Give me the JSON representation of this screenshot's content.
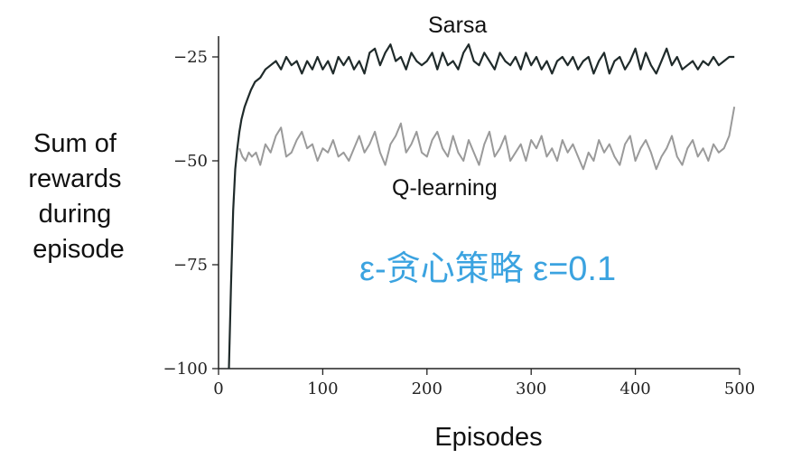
{
  "chart_data": {
    "type": "line",
    "title": "",
    "xlabel": "Episodes",
    "ylabel": [
      "Sum of",
      "rewards",
      "during",
      "episode"
    ],
    "xlim": [
      0,
      500
    ],
    "ylim": [
      -100,
      -20
    ],
    "xticks": [
      0,
      100,
      200,
      300,
      400,
      500
    ],
    "xtick_labels": [
      "0",
      "100",
      "200",
      "300",
      "400",
      "500"
    ],
    "yticks": [
      -25,
      -50,
      -75,
      -100
    ],
    "ytick_labels": [
      "−25",
      "−50",
      "−75",
      "−100"
    ],
    "grid": false,
    "legend": "none",
    "annotation": "ε-贪心策略 ε=0.1",
    "annotation_color": "#3ba3e0",
    "series": [
      {
        "name": "Sarsa",
        "color": "#1f2a2a",
        "x": [
          10,
          12,
          14,
          16,
          18,
          20,
          22,
          25,
          28,
          31,
          35,
          40,
          45,
          50,
          55,
          60,
          65,
          70,
          75,
          80,
          85,
          90,
          95,
          100,
          105,
          110,
          115,
          120,
          125,
          130,
          135,
          140,
          145,
          150,
          155,
          160,
          165,
          170,
          175,
          180,
          185,
          190,
          195,
          200,
          205,
          210,
          215,
          220,
          225,
          230,
          235,
          240,
          245,
          250,
          255,
          260,
          265,
          270,
          275,
          280,
          285,
          290,
          295,
          300,
          305,
          310,
          315,
          320,
          325,
          330,
          335,
          340,
          345,
          350,
          355,
          360,
          365,
          370,
          375,
          380,
          385,
          390,
          395,
          400,
          405,
          410,
          415,
          420,
          425,
          430,
          435,
          440,
          445,
          450,
          455,
          460,
          465,
          470,
          475,
          480,
          485,
          490,
          495
        ],
        "y": [
          -100,
          -80,
          -62,
          -52,
          -47,
          -43,
          -40,
          -37,
          -35,
          -33,
          -31,
          -30,
          -28,
          -27,
          -26,
          -28,
          -25,
          -27,
          -26,
          -29,
          -26,
          -28,
          -25,
          -28,
          -26,
          -29,
          -25,
          -27,
          -25,
          -28,
          -26,
          -29,
          -24,
          -23,
          -27,
          -24,
          -22,
          -26,
          -25,
          -28,
          -24,
          -26,
          -27,
          -26,
          -24,
          -28,
          -24,
          -27,
          -26,
          -28,
          -24,
          -22,
          -26,
          -27,
          -24,
          -26,
          -28,
          -24,
          -26,
          -27,
          -25,
          -28,
          -24,
          -27,
          -25,
          -28,
          -26,
          -29,
          -26,
          -25,
          -27,
          -25,
          -28,
          -26,
          -25,
          -29,
          -26,
          -24,
          -29,
          -26,
          -25,
          -28,
          -26,
          -23,
          -28,
          -24,
          -27,
          -29,
          -26,
          -23,
          -27,
          -25,
          -28,
          -27,
          -26,
          -28,
          -26,
          -27,
          -25,
          -27,
          -26,
          -25,
          -25
        ]
      },
      {
        "name": "Q-learning",
        "color": "#9a9a9a",
        "x": [
          20,
          23,
          26,
          29,
          32,
          36,
          40,
          45,
          50,
          55,
          60,
          65,
          70,
          75,
          80,
          85,
          90,
          95,
          100,
          105,
          110,
          115,
          120,
          125,
          130,
          135,
          140,
          145,
          150,
          155,
          160,
          165,
          170,
          175,
          180,
          185,
          190,
          195,
          200,
          205,
          210,
          215,
          220,
          225,
          230,
          235,
          240,
          245,
          250,
          255,
          260,
          265,
          270,
          275,
          280,
          285,
          290,
          295,
          300,
          305,
          310,
          315,
          320,
          325,
          330,
          335,
          340,
          345,
          350,
          355,
          360,
          365,
          370,
          375,
          380,
          385,
          390,
          395,
          400,
          405,
          410,
          415,
          420,
          425,
          430,
          435,
          440,
          445,
          450,
          455,
          460,
          465,
          470,
          475,
          480,
          485,
          490,
          495
        ],
        "y": [
          -47,
          -49,
          -50,
          -48,
          -49,
          -48,
          -51,
          -46,
          -48,
          -44,
          -42,
          -49,
          -48,
          -45,
          -43,
          -47,
          -46,
          -50,
          -47,
          -48,
          -45,
          -49,
          -48,
          -50,
          -47,
          -44,
          -48,
          -46,
          -43,
          -48,
          -51,
          -46,
          -44,
          -41,
          -48,
          -46,
          -43,
          -48,
          -49,
          -45,
          -43,
          -47,
          -49,
          -44,
          -48,
          -50,
          -45,
          -48,
          -51,
          -46,
          -43,
          -49,
          -47,
          -44,
          -50,
          -48,
          -46,
          -50,
          -45,
          -47,
          -44,
          -49,
          -47,
          -50,
          -45,
          -48,
          -46,
          -49,
          -52,
          -48,
          -50,
          -45,
          -48,
          -46,
          -49,
          -51,
          -46,
          -44,
          -50,
          -47,
          -45,
          -48,
          -52,
          -49,
          -47,
          -44,
          -49,
          -51,
          -47,
          -45,
          -49,
          -47,
          -50,
          -46,
          -48,
          -47,
          -44,
          -37
        ]
      }
    ]
  }
}
